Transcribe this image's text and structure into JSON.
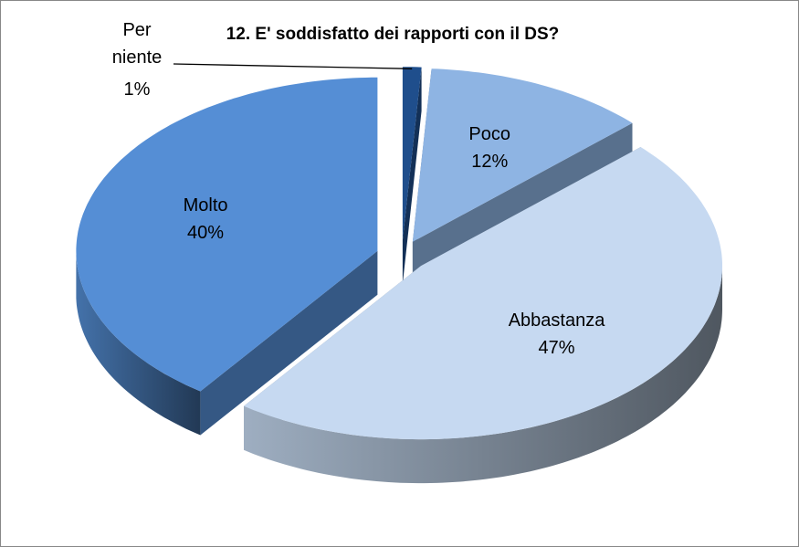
{
  "chart_data": {
    "type": "pie",
    "title": "12. E' soddisfatto dei rapporti con il DS?",
    "categories": [
      "Per niente",
      "Poco",
      "Abbastanza",
      "Molto"
    ],
    "values": [
      1,
      12,
      47,
      40
    ],
    "value_labels": [
      "1%",
      "12%",
      "47%",
      "40%"
    ],
    "colors": [
      "#1f4e8c",
      "#8eb4e3",
      "#c6d9f1",
      "#558ed5"
    ]
  }
}
